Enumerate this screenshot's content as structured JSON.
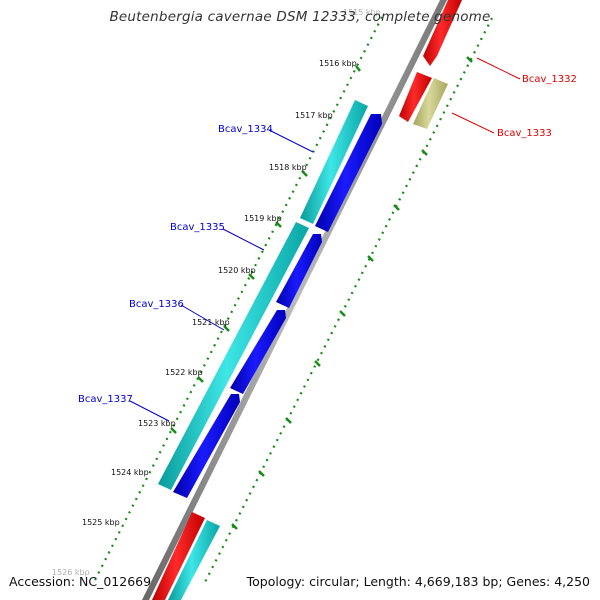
{
  "title": "Beutenbergia cavernae DSM 12333, complete genome",
  "footer": {
    "accession": "Accession: NC_012669",
    "stats": "Topology: circular; Length: 4,669,183 bp; Genes: 4,250"
  },
  "kbp_labels": [
    "1515 kbp",
    "1516 kbp",
    "1517 kbp",
    "1518 kbp",
    "1519 kbp",
    "1520 kbp",
    "1521 kbp",
    "1522 kbp",
    "1523 kbp",
    "1524 kbp",
    "1525 kbp",
    "1526 kbp"
  ],
  "gene_labels": [
    {
      "name": "Bcav_1332",
      "color": "#dd0000"
    },
    {
      "name": "Bcav_1333",
      "color": "#dd0000"
    },
    {
      "name": "Bcav_1334",
      "color": "#0000cc"
    },
    {
      "name": "Bcav_1335",
      "color": "#0000cc"
    },
    {
      "name": "Bcav_1336",
      "color": "#0000cc"
    },
    {
      "name": "Bcav_1337",
      "color": "#0000cc"
    }
  ],
  "colors": {
    "cds_forward": "#0000ee",
    "cds_reverse": "#ee0000",
    "rna": "#1ac7c7",
    "other": "#c2c27a",
    "backbone": "#888888",
    "tick": "#1a8a1a"
  }
}
